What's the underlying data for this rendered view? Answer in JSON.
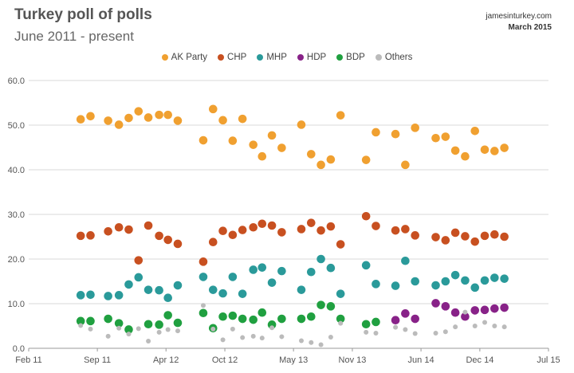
{
  "header": {
    "title": "Turkey poll of polls",
    "subtitle": "June 2011 - present",
    "source": "jamesinturkey.com",
    "date": "March 2015"
  },
  "chart_data": {
    "type": "scatter",
    "title": "Turkey poll of polls",
    "subtitle": "June 2011 - present",
    "xlabel": "",
    "ylabel": "",
    "ylim": [
      0,
      60
    ],
    "xlim": [
      0,
      53
    ],
    "x_unit": "months since Feb 2011",
    "yticks": [
      "0.0",
      "10.0",
      "20.0",
      "30.0",
      "40.0",
      "50.0",
      "60.0"
    ],
    "xticks": [
      {
        "label": "Feb 11",
        "x": 0
      },
      {
        "label": "Sep 11",
        "x": 7
      },
      {
        "label": "Apr 12",
        "x": 14
      },
      {
        "label": "Oct 12",
        "x": 20
      },
      {
        "label": "May 13",
        "x": 27
      },
      {
        "label": "Nov 13",
        "x": 33
      },
      {
        "label": "Jun 14",
        "x": 40
      },
      {
        "label": "Dec 14",
        "x": 46
      },
      {
        "label": "Jul 15",
        "x": 53
      }
    ],
    "grid": "horizontal",
    "legend_position": "top",
    "series": [
      {
        "name": "AK Party",
        "color": "#f0a030",
        "points": [
          [
            5.3,
            51.3
          ],
          [
            6.3,
            52
          ],
          [
            8.1,
            51
          ],
          [
            9.2,
            50.1
          ],
          [
            10.2,
            51.6
          ],
          [
            11.2,
            53.1
          ],
          [
            12.2,
            51.7
          ],
          [
            13.3,
            52.3
          ],
          [
            14.2,
            52.3
          ],
          [
            15.2,
            51
          ],
          [
            17.8,
            46.6
          ],
          [
            18.8,
            53.6
          ],
          [
            19.8,
            51.1
          ],
          [
            20.8,
            46.5
          ],
          [
            21.8,
            51.4
          ],
          [
            22.9,
            45.6
          ],
          [
            23.8,
            43
          ],
          [
            24.8,
            47.7
          ],
          [
            25.8,
            44.9
          ],
          [
            27.8,
            50.1
          ],
          [
            28.8,
            43.5
          ],
          [
            29.8,
            41.1
          ],
          [
            30.8,
            42.3
          ],
          [
            31.8,
            52.2
          ],
          [
            34.4,
            42.2
          ],
          [
            35.4,
            48.4
          ],
          [
            37.4,
            48
          ],
          [
            38.4,
            41.1
          ],
          [
            39.4,
            49.4
          ],
          [
            41.5,
            47.1
          ],
          [
            42.5,
            47.4
          ],
          [
            43.5,
            44.3
          ],
          [
            44.5,
            43
          ],
          [
            45.5,
            48.7
          ],
          [
            46.5,
            44.5
          ],
          [
            47.5,
            44.2
          ],
          [
            48.5,
            44.9
          ]
        ]
      },
      {
        "name": "CHP",
        "color": "#c85020",
        "points": [
          [
            5.3,
            25.2
          ],
          [
            6.3,
            25.3
          ],
          [
            8.1,
            26.2
          ],
          [
            9.2,
            27.1
          ],
          [
            10.2,
            26.6
          ],
          [
            11.2,
            19.7
          ],
          [
            12.2,
            27.5
          ],
          [
            13.3,
            25.2
          ],
          [
            14.2,
            24.3
          ],
          [
            15.2,
            23.4
          ],
          [
            17.8,
            19.4
          ],
          [
            18.8,
            23.8
          ],
          [
            19.8,
            26.3
          ],
          [
            20.8,
            25.4
          ],
          [
            21.8,
            26.5
          ],
          [
            22.9,
            27.1
          ],
          [
            23.8,
            27.9
          ],
          [
            24.8,
            27.5
          ],
          [
            25.8,
            26
          ],
          [
            27.8,
            26.7
          ],
          [
            28.8,
            28.1
          ],
          [
            29.8,
            26.4
          ],
          [
            30.8,
            27.3
          ],
          [
            31.8,
            23.3
          ],
          [
            34.4,
            29.6
          ],
          [
            35.4,
            27.4
          ],
          [
            37.4,
            26.4
          ],
          [
            38.4,
            26.7
          ],
          [
            39.4,
            25.3
          ],
          [
            41.5,
            24.9
          ],
          [
            42.5,
            24.2
          ],
          [
            43.5,
            25.9
          ],
          [
            44.5,
            25.1
          ],
          [
            45.5,
            23.9
          ],
          [
            46.5,
            25.2
          ],
          [
            47.5,
            25.5
          ],
          [
            48.5,
            25
          ]
        ]
      },
      {
        "name": "MHP",
        "color": "#2a9a9a",
        "points": [
          [
            5.3,
            11.9
          ],
          [
            6.3,
            12
          ],
          [
            8.1,
            11.7
          ],
          [
            9.2,
            11.9
          ],
          [
            10.2,
            14.3
          ],
          [
            11.2,
            15.9
          ],
          [
            12.2,
            13.1
          ],
          [
            13.3,
            13
          ],
          [
            14.2,
            11.3
          ],
          [
            15.2,
            14.1
          ],
          [
            17.8,
            16
          ],
          [
            18.8,
            13.1
          ],
          [
            19.8,
            12.3
          ],
          [
            20.8,
            16
          ],
          [
            21.8,
            12.2
          ],
          [
            22.9,
            17.6
          ],
          [
            23.8,
            18.1
          ],
          [
            24.8,
            14.7
          ],
          [
            25.8,
            17.3
          ],
          [
            27.8,
            13.1
          ],
          [
            28.8,
            17.1
          ],
          [
            29.8,
            20
          ],
          [
            30.8,
            18
          ],
          [
            31.8,
            12.2
          ],
          [
            34.4,
            18.6
          ],
          [
            35.4,
            14.4
          ],
          [
            37.4,
            14
          ],
          [
            38.4,
            19.6
          ],
          [
            39.4,
            15
          ],
          [
            41.5,
            14.1
          ],
          [
            42.5,
            15
          ],
          [
            43.5,
            16.4
          ],
          [
            44.5,
            15.2
          ],
          [
            45.5,
            13.6
          ],
          [
            46.5,
            15.2
          ],
          [
            47.5,
            15.8
          ],
          [
            48.5,
            15.6
          ]
        ]
      },
      {
        "name": "HDP",
        "color": "#882288",
        "points": [
          [
            37.4,
            6.3
          ],
          [
            38.4,
            7.8
          ],
          [
            39.4,
            6.6
          ],
          [
            41.5,
            10.1
          ],
          [
            42.5,
            9.4
          ],
          [
            43.5,
            8
          ],
          [
            44.5,
            7.1
          ],
          [
            45.5,
            8.5
          ],
          [
            46.5,
            8.6
          ],
          [
            47.5,
            8.9
          ],
          [
            48.5,
            9.1
          ]
        ]
      },
      {
        "name": "BDP",
        "color": "#20a040",
        "points": [
          [
            5.3,
            6.1
          ],
          [
            6.3,
            6.1
          ],
          [
            8.1,
            6.6
          ],
          [
            9.2,
            5.6
          ],
          [
            10.2,
            4.2
          ],
          [
            12.2,
            5.4
          ],
          [
            13.3,
            5.3
          ],
          [
            14.2,
            7.4
          ],
          [
            15.2,
            5.7
          ],
          [
            17.8,
            7.9
          ],
          [
            18.8,
            4.5
          ],
          [
            19.8,
            7.1
          ],
          [
            20.8,
            7.3
          ],
          [
            21.8,
            6.6
          ],
          [
            22.9,
            6.4
          ],
          [
            23.8,
            8
          ],
          [
            24.8,
            5.3
          ],
          [
            25.8,
            6.6
          ],
          [
            27.8,
            6.6
          ],
          [
            28.8,
            7.1
          ],
          [
            29.8,
            9.7
          ],
          [
            30.8,
            9.4
          ],
          [
            31.8,
            6.6
          ],
          [
            34.4,
            5.4
          ],
          [
            35.4,
            5.9
          ]
        ]
      },
      {
        "name": "Others",
        "color": "#bbbbbb",
        "points": [
          [
            5.3,
            5.1
          ],
          [
            6.3,
            4.3
          ],
          [
            8.1,
            2.7
          ],
          [
            9.2,
            4.5
          ],
          [
            10.2,
            3.2
          ],
          [
            11.2,
            4.4
          ],
          [
            12.2,
            1.6
          ],
          [
            13.3,
            3.6
          ],
          [
            14.2,
            4.2
          ],
          [
            15.2,
            3.9
          ],
          [
            17.8,
            9.6
          ],
          [
            18.8,
            4.3
          ],
          [
            19.8,
            1.9
          ],
          [
            20.8,
            4.3
          ],
          [
            21.8,
            2.4
          ],
          [
            22.9,
            2.7
          ],
          [
            23.8,
            2.3
          ],
          [
            24.8,
            4.6
          ],
          [
            25.8,
            2.6
          ],
          [
            27.8,
            1.7
          ],
          [
            28.8,
            1.3
          ],
          [
            29.8,
            0.8
          ],
          [
            30.8,
            2.5
          ],
          [
            31.8,
            5.6
          ],
          [
            34.4,
            3.6
          ],
          [
            35.4,
            3.4
          ],
          [
            37.4,
            4.7
          ],
          [
            38.4,
            4.2
          ],
          [
            39.4,
            3.3
          ],
          [
            41.5,
            3.4
          ],
          [
            42.5,
            3.7
          ],
          [
            43.5,
            4.8
          ],
          [
            44.5,
            8.1
          ],
          [
            45.5,
            5
          ],
          [
            46.5,
            5.8
          ],
          [
            47.5,
            5
          ],
          [
            48.5,
            4.8
          ]
        ]
      }
    ]
  }
}
